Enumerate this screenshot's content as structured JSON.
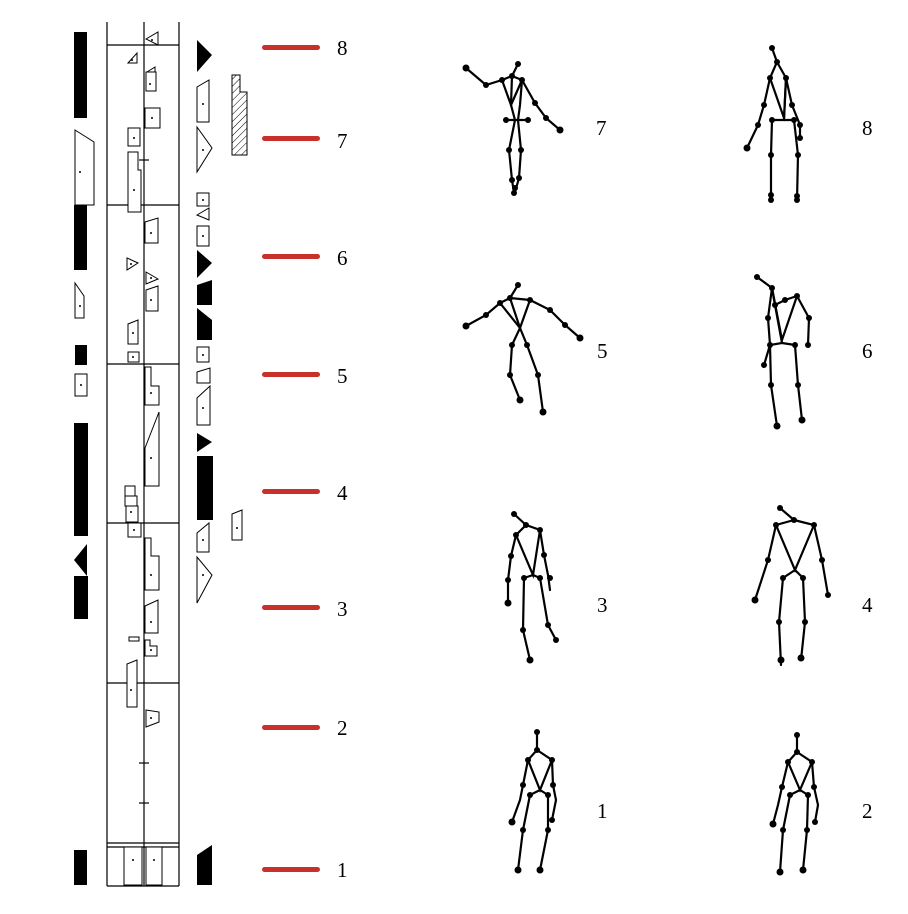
{
  "markers": [
    "1",
    "2",
    "3",
    "4",
    "5",
    "6",
    "7",
    "8"
  ],
  "figure_labels": [
    "7",
    "8",
    "5",
    "6",
    "3",
    "4",
    "1",
    "2"
  ],
  "colors": {
    "marker": "#c8302c",
    "ink": "#000000"
  }
}
